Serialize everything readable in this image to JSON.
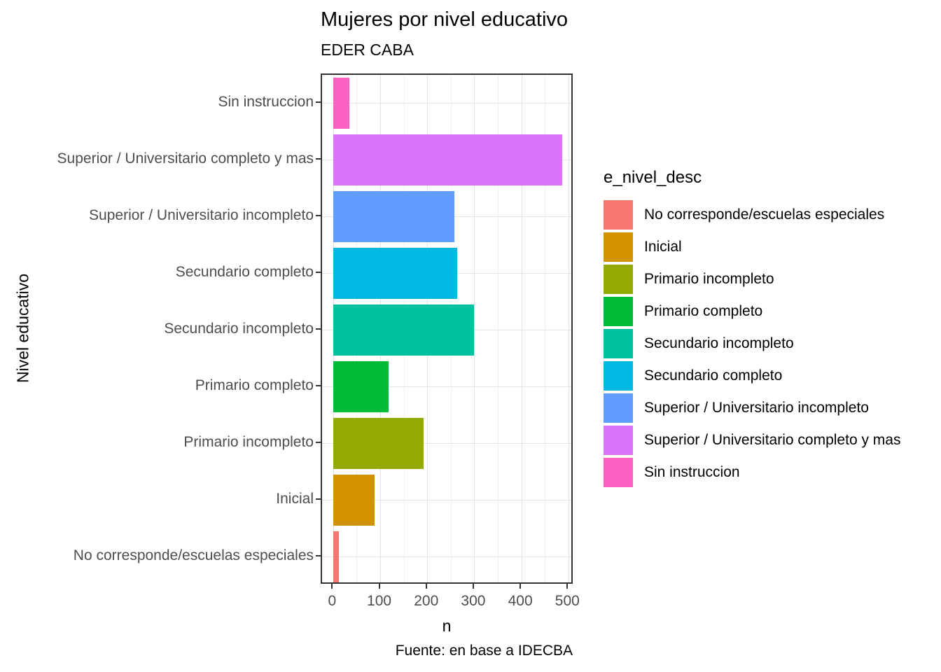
{
  "chart_data": {
    "type": "bar",
    "orientation": "horizontal",
    "title": "Mujeres por nivel educativo",
    "subtitle": "EDER CABA",
    "caption": "Fuente: en base a IDECBA",
    "xlabel": "n",
    "ylabel": "Nivel educativo",
    "legend_title": "e_nivel_desc",
    "legend_position": "right",
    "grid": "x major+minor, y major at category centers",
    "categories": [
      "Sin instruccion",
      "Superior / Universitario completo y mas",
      "Superior / Universitario incompleto",
      "Secundario completo",
      "Secundario incompleto",
      "Primario completo",
      "Primario incompleto",
      "Inicial",
      "No corresponde/escuelas especiales"
    ],
    "values": [
      33,
      486,
      257,
      263,
      299,
      117,
      191,
      87,
      12
    ],
    "bar_colors": [
      "#FF61C3",
      "#DB72FB",
      "#619CFF",
      "#00B9E3",
      "#00C19F",
      "#00BA38",
      "#93AA00",
      "#D39200",
      "#F8766D"
    ],
    "x_ticks": [
      0,
      100,
      200,
      300,
      400,
      500
    ],
    "x_minor_gridlines": [
      50,
      150,
      250,
      350,
      450
    ],
    "xlim": [
      -24.4,
      511.4
    ],
    "legend": [
      {
        "label": "No corresponde/escuelas especiales",
        "color": "#F8766D"
      },
      {
        "label": "Inicial",
        "color": "#D39200"
      },
      {
        "label": "Primario incompleto",
        "color": "#93AA00"
      },
      {
        "label": "Primario completo",
        "color": "#00BA38"
      },
      {
        "label": "Secundario incompleto",
        "color": "#00C19F"
      },
      {
        "label": "Secundario completo",
        "color": "#00B9E3"
      },
      {
        "label": "Superior / Universitario incompleto",
        "color": "#619CFF"
      },
      {
        "label": "Superior / Universitario completo y mas",
        "color": "#DB72FB"
      },
      {
        "label": "Sin instruccion",
        "color": "#FF61C3"
      }
    ],
    "colors": {
      "axis_text": "#4D4D4D",
      "panel_border": "#333333",
      "grid_major": "#E4E4E4",
      "grid_minor": "#F0F0F0",
      "text": "#000000"
    }
  }
}
